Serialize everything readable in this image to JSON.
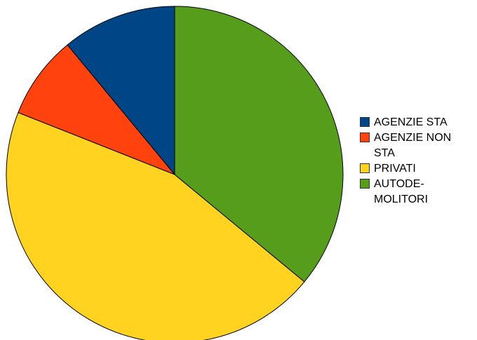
{
  "chart_data": {
    "type": "pie",
    "title": "",
    "categories": [
      "AGENZIE STA",
      "AGENZIE NON\nSTA",
      "PRIVATI",
      "AUTODE-\nMOLITORI"
    ],
    "values": [
      11,
      8,
      45,
      36
    ],
    "colors": [
      "#004586",
      "#ff420e",
      "#ffd320",
      "#579d1c"
    ],
    "legend_position": "right"
  }
}
